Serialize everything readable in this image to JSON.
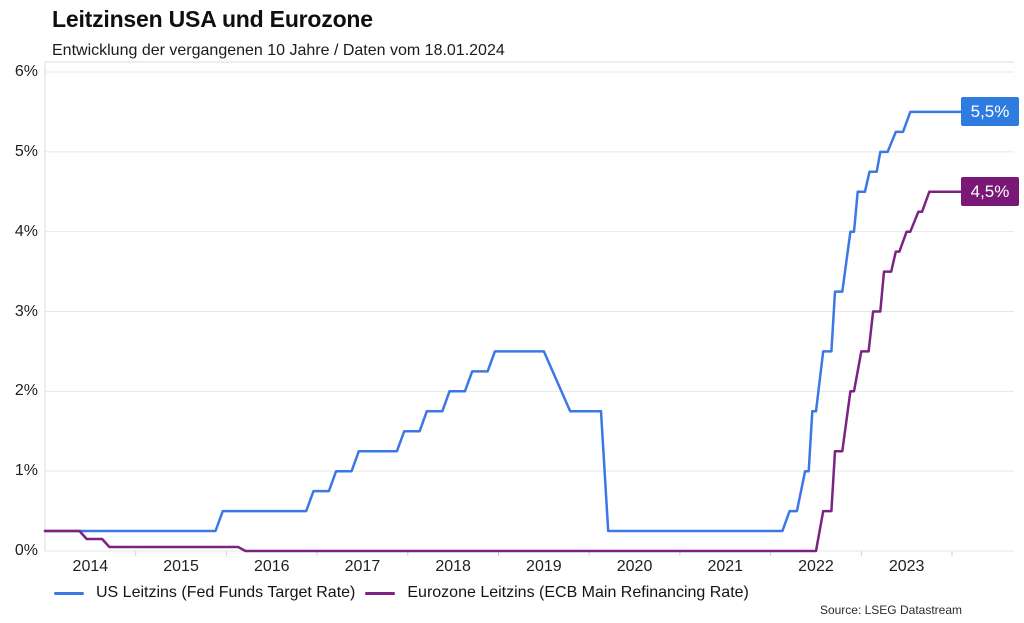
{
  "header": {
    "title": "Leitzinsen USA und Eurozone",
    "subtitle": "Entwicklung der vergangenen 10 Jahre / Daten vom 18.01.2024"
  },
  "source": "Source: LSEG Datastream",
  "colors": {
    "background": "#ffffff",
    "grid": "#e7e7e7",
    "border": "#dcdcdc",
    "tick": "#cfcfcf",
    "text": "#1f1f1f",
    "us_line": "#3b78e6",
    "us_badge_bg": "#2e7ce0",
    "ez_line": "#7c2382",
    "ez_badge_bg": "#7a1878"
  },
  "legend": [
    {
      "id": "us",
      "label": "US Leitzins (Fed Funds Target Rate)",
      "color": "#3b78e6"
    },
    {
      "id": "ez",
      "label": "Eurozone Leitzins (ECB Main Refinancing Rate)",
      "color": "#7c2382"
    }
  ],
  "chart_data": {
    "type": "line",
    "title": "Leitzinsen USA und Eurozone",
    "subtitle": "Entwicklung der vergangenen 10 Jahre / Daten vom 18.01.2024",
    "grid": "horizontal",
    "legend_position": "bottom",
    "x_axis": {
      "tick_labels": [
        "2014",
        "2015",
        "2016",
        "2017",
        "2018",
        "2019",
        "2020",
        "2021",
        "2022",
        "2023"
      ],
      "label_years": [
        2014,
        2015,
        2016,
        2017,
        2018,
        2019,
        2020,
        2021,
        2022,
        2023
      ],
      "year_start_ticks": [
        2015,
        2016,
        2017,
        2018,
        2019,
        2020,
        2021,
        2022,
        2023,
        2024
      ],
      "range_years": [
        2014.0,
        2024.7
      ]
    },
    "y_axis": {
      "tick_labels": [
        "0%",
        "1%",
        "2%",
        "3%",
        "4%",
        "5%",
        "6%"
      ],
      "values": [
        0,
        1,
        2,
        3,
        4,
        5,
        6
      ],
      "unit": "%",
      "range": [
        0,
        6.13
      ]
    },
    "series": [
      {
        "id": "us",
        "name": "US Leitzins (Fed Funds Target Rate)",
        "color": "#3b78e6",
        "badge_bg": "#2e7ce0",
        "end_label": "5,5%",
        "end_value": 5.5,
        "points": [
          [
            2014.0,
            0.25
          ],
          [
            2015.88,
            0.25
          ],
          [
            2015.96,
            0.5
          ],
          [
            2016.88,
            0.5
          ],
          [
            2016.96,
            0.75
          ],
          [
            2017.13,
            0.75
          ],
          [
            2017.21,
            1.0
          ],
          [
            2017.38,
            1.0
          ],
          [
            2017.46,
            1.25
          ],
          [
            2017.88,
            1.25
          ],
          [
            2017.96,
            1.5
          ],
          [
            2018.13,
            1.5
          ],
          [
            2018.21,
            1.75
          ],
          [
            2018.38,
            1.75
          ],
          [
            2018.46,
            2.0
          ],
          [
            2018.63,
            2.0
          ],
          [
            2018.71,
            2.25
          ],
          [
            2018.88,
            2.25
          ],
          [
            2018.96,
            2.5
          ],
          [
            2019.5,
            2.5
          ],
          [
            2019.79,
            1.75
          ],
          [
            2020.13,
            1.75
          ],
          [
            2020.21,
            0.25
          ],
          [
            2022.13,
            0.25
          ],
          [
            2022.21,
            0.5
          ],
          [
            2022.29,
            0.5
          ],
          [
            2022.38,
            1.0
          ],
          [
            2022.42,
            1.0
          ],
          [
            2022.46,
            1.75
          ],
          [
            2022.5,
            1.75
          ],
          [
            2022.58,
            2.5
          ],
          [
            2022.67,
            2.5
          ],
          [
            2022.71,
            3.25
          ],
          [
            2022.79,
            3.25
          ],
          [
            2022.88,
            4.0
          ],
          [
            2022.92,
            4.0
          ],
          [
            2022.96,
            4.5
          ],
          [
            2023.04,
            4.5
          ],
          [
            2023.09,
            4.75
          ],
          [
            2023.17,
            4.75
          ],
          [
            2023.21,
            5.0
          ],
          [
            2023.29,
            5.0
          ],
          [
            2023.38,
            5.25
          ],
          [
            2023.46,
            5.25
          ],
          [
            2023.54,
            5.5
          ],
          [
            2024.1,
            5.5
          ]
        ]
      },
      {
        "id": "ez",
        "name": "Eurozone Leitzins (ECB Main Refinancing Rate)",
        "color": "#7c2382",
        "badge_bg": "#7a1878",
        "end_label": "4,5%",
        "end_value": 4.5,
        "points": [
          [
            2014.0,
            0.25
          ],
          [
            2014.38,
            0.25
          ],
          [
            2014.46,
            0.15
          ],
          [
            2014.63,
            0.15
          ],
          [
            2014.71,
            0.05
          ],
          [
            2016.13,
            0.05
          ],
          [
            2016.21,
            0.0
          ],
          [
            2022.5,
            0.0
          ],
          [
            2022.58,
            0.5
          ],
          [
            2022.67,
            0.5
          ],
          [
            2022.71,
            1.25
          ],
          [
            2022.79,
            1.25
          ],
          [
            2022.88,
            2.0
          ],
          [
            2022.92,
            2.0
          ],
          [
            2023.0,
            2.5
          ],
          [
            2023.08,
            2.5
          ],
          [
            2023.13,
            3.0
          ],
          [
            2023.21,
            3.0
          ],
          [
            2023.25,
            3.5
          ],
          [
            2023.33,
            3.5
          ],
          [
            2023.38,
            3.75
          ],
          [
            2023.42,
            3.75
          ],
          [
            2023.5,
            4.0
          ],
          [
            2023.54,
            4.0
          ],
          [
            2023.63,
            4.25
          ],
          [
            2023.67,
            4.25
          ],
          [
            2023.75,
            4.5
          ],
          [
            2024.1,
            4.5
          ]
        ]
      }
    ]
  }
}
